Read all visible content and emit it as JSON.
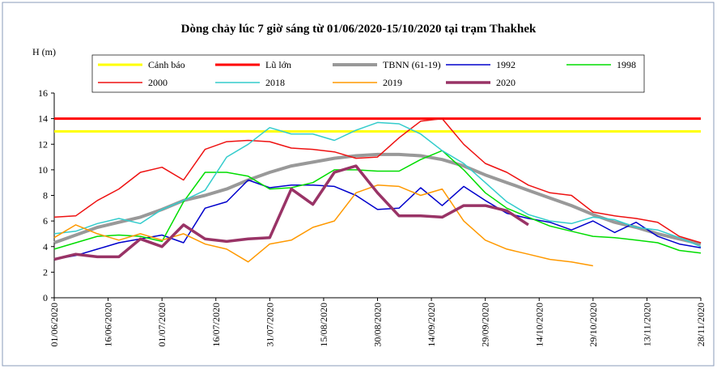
{
  "chart_data": {
    "type": "line",
    "title": "Dòng chảy lúc 7 giờ sáng từ 01/06/2020-15/10/2020 tại trạm Thakhek",
    "y_label": "H (m)",
    "x": [
      "01/06/2020",
      "07/06/2020",
      "13/06/2020",
      "19/06/2020",
      "25/06/2020",
      "01/07/2020",
      "07/07/2020",
      "13/07/2020",
      "19/07/2020",
      "25/07/2020",
      "31/07/2020",
      "06/08/2020",
      "12/08/2020",
      "18/08/2020",
      "24/08/2020",
      "30/08/2020",
      "05/09/2020",
      "11/09/2020",
      "17/09/2020",
      "23/09/2020",
      "29/09/2020",
      "05/10/2020",
      "11/10/2020",
      "17/10/2020",
      "23/10/2020",
      "29/10/2020",
      "04/11/2020",
      "10/11/2020",
      "16/11/2020",
      "22/11/2020",
      "28/11/2020"
    ],
    "xticks": [
      "01/06/2020",
      "16/06/2020",
      "01/07/2020",
      "16/07/2020",
      "31/07/2020",
      "15/08/2020",
      "30/08/2020",
      "14/09/2020",
      "29/09/2020",
      "14/10/2020",
      "29/10/2020",
      "13/11/2020",
      "28/11/2020"
    ],
    "xlim": [
      "01/06/2020",
      "28/11/2020"
    ],
    "ylim": [
      0,
      16
    ],
    "yticks": [
      0,
      2,
      4,
      6,
      8,
      10,
      12,
      14,
      16
    ],
    "grid": false,
    "series": [
      {
        "name": "Cảnh báo",
        "color": "#ffff00",
        "line_width": 3,
        "values": [
          13,
          13,
          13,
          13,
          13,
          13,
          13,
          13,
          13,
          13,
          13,
          13,
          13,
          13,
          13,
          13,
          13,
          13,
          13,
          13,
          13,
          13,
          13,
          13,
          13,
          13,
          13,
          13,
          13,
          13,
          13
        ]
      },
      {
        "name": "Lũ lớn",
        "color": "#ff0000",
        "line_width": 3,
        "values": [
          14,
          14,
          14,
          14,
          14,
          14,
          14,
          14,
          14,
          14,
          14,
          14,
          14,
          14,
          14,
          14,
          14,
          14,
          14,
          14,
          14,
          14,
          14,
          14,
          14,
          14,
          14,
          14,
          14,
          14,
          14
        ]
      },
      {
        "name": "TBNN (61-19)",
        "color": "#999999",
        "line_width": 4,
        "values": [
          4.3,
          4.9,
          5.5,
          5.9,
          6.3,
          6.9,
          7.6,
          8.0,
          8.5,
          9.2,
          9.8,
          10.3,
          10.6,
          10.9,
          11.1,
          11.2,
          11.2,
          11.1,
          10.8,
          10.3,
          9.6,
          9.0,
          8.4,
          7.8,
          7.2,
          6.5,
          5.9,
          5.5,
          5.0,
          4.6,
          4.2
        ]
      },
      {
        "name": "1992",
        "color": "#0000cc",
        "line_width": 1.5,
        "values": [
          3.0,
          3.3,
          3.8,
          4.3,
          4.6,
          4.9,
          4.3,
          7.0,
          7.5,
          9.2,
          8.6,
          8.8,
          8.8,
          8.7,
          8.0,
          6.9,
          7.0,
          8.6,
          7.2,
          8.7,
          7.6,
          6.6,
          6.2,
          5.9,
          5.3,
          6.0,
          5.1,
          5.9,
          4.8,
          4.2,
          3.9
        ]
      },
      {
        "name": "1998",
        "color": "#00dd00",
        "line_width": 1.5,
        "values": [
          3.8,
          4.3,
          4.8,
          4.9,
          4.8,
          4.4,
          7.5,
          9.8,
          9.8,
          9.5,
          8.5,
          8.6,
          9.0,
          10.0,
          10.0,
          9.9,
          9.9,
          10.8,
          11.5,
          10.0,
          8.2,
          7.0,
          6.3,
          5.6,
          5.2,
          4.8,
          4.7,
          4.5,
          4.3,
          3.7,
          3.5
        ]
      },
      {
        "name": "2000",
        "color": "#ee1111",
        "line_width": 1.5,
        "values": [
          6.3,
          6.4,
          7.6,
          8.5,
          9.8,
          10.2,
          9.2,
          11.6,
          12.2,
          12.3,
          12.2,
          11.7,
          11.6,
          11.4,
          10.9,
          11.0,
          12.5,
          13.8,
          14.0,
          12.0,
          10.5,
          9.8,
          8.8,
          8.2,
          8.0,
          6.7,
          6.4,
          6.2,
          5.9,
          4.8,
          4.3
        ]
      },
      {
        "name": "2018",
        "color": "#33cccc",
        "line_width": 1.5,
        "values": [
          5.0,
          5.2,
          5.8,
          6.2,
          5.8,
          6.9,
          7.6,
          8.4,
          11.0,
          12.0,
          13.3,
          12.8,
          12.8,
          12.3,
          13.1,
          13.7,
          13.6,
          12.8,
          11.5,
          10.5,
          9.0,
          7.5,
          6.5,
          6.0,
          5.8,
          6.3,
          6.1,
          5.5,
          5.3,
          4.7,
          4.0
        ]
      },
      {
        "name": "2019",
        "color": "#ff9900",
        "line_width": 1.5,
        "values": [
          4.7,
          5.7,
          5.0,
          4.5,
          5.0,
          4.5,
          5.0,
          4.2,
          3.8,
          2.8,
          4.2,
          4.5,
          5.5,
          6.0,
          8.2,
          8.8,
          8.7,
          8.0,
          8.5,
          6.0,
          4.5,
          3.8,
          3.4,
          3.0,
          2.8,
          2.5,
          null,
          null,
          null,
          null,
          null
        ]
      },
      {
        "name": "2020",
        "color": "#993366",
        "line_width": 3.5,
        "values": [
          3.0,
          3.4,
          3.2,
          3.2,
          4.6,
          4.0,
          5.7,
          4.6,
          4.4,
          4.6,
          4.7,
          8.5,
          7.3,
          9.8,
          10.3,
          8.2,
          6.4,
          6.4,
          6.3,
          7.2,
          7.2,
          6.8,
          5.7,
          null,
          null,
          null,
          null,
          null,
          null,
          null,
          null
        ]
      }
    ]
  }
}
